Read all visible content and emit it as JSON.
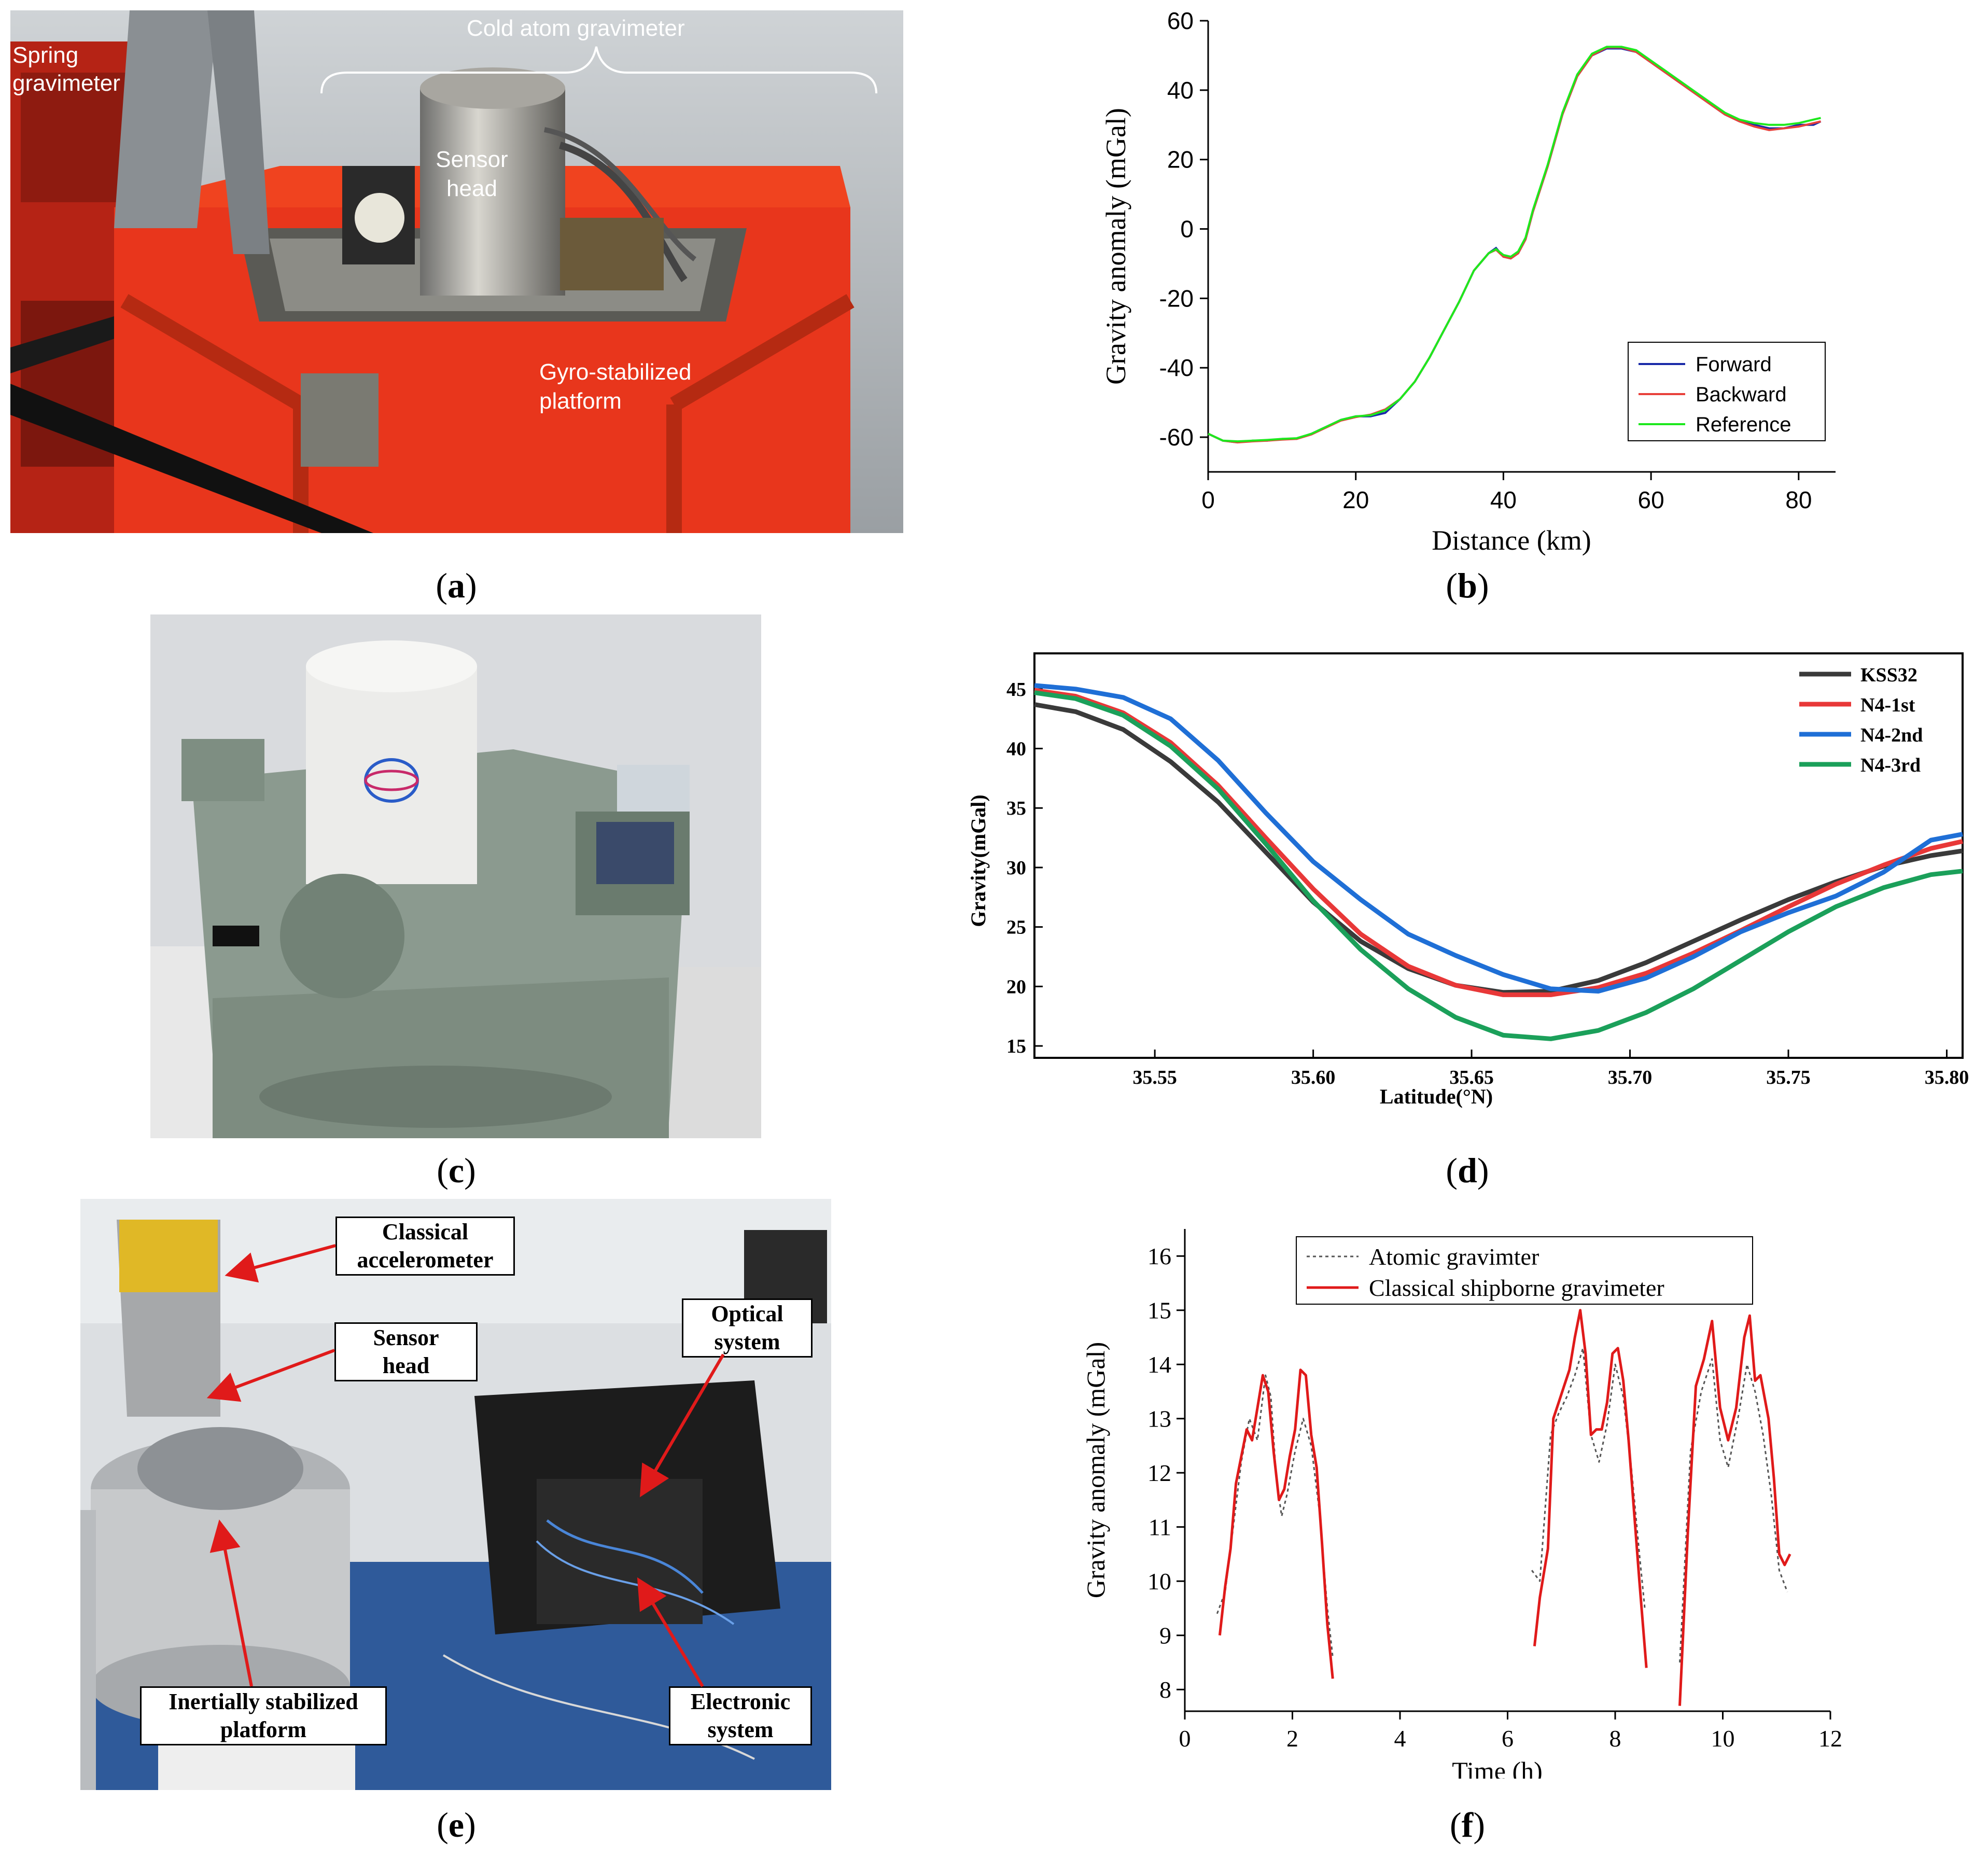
{
  "captions": {
    "a": "a",
    "b": "b",
    "c": "c",
    "d": "d",
    "e": "e",
    "f": "f"
  },
  "photo_a": {
    "labels": {
      "spring_gravimeter": [
        "Spring",
        "gravimeter"
      ],
      "cold_atom": "Cold atom gravimeter",
      "sensor_head": [
        "Sensor",
        "head"
      ],
      "gyro_platform": [
        "Gyro-stabilized",
        "platform"
      ]
    }
  },
  "photo_e": {
    "labels": {
      "classical_accelerometer": [
        "Classical",
        "accelerometer"
      ],
      "sensor_head": [
        "Sensor",
        "head"
      ],
      "optical_system": [
        "Optical",
        "system"
      ],
      "inertially_stabilized_platform": [
        "Inertially stabilized",
        "platform"
      ],
      "electronic_system": [
        "Electronic",
        "system"
      ]
    }
  },
  "chart_data": [
    {
      "id": "b",
      "type": "line",
      "xlabel": "Distance (km)",
      "ylabel": "Gravity anomaly (mGal)",
      "xlim": [
        0,
        85
      ],
      "ylim": [
        -70,
        60
      ],
      "xticks": [
        0,
        20,
        40,
        60,
        80
      ],
      "yticks": [
        -60,
        -40,
        -20,
        0,
        20,
        40,
        60
      ],
      "legend_position": "bottom-right",
      "x": [
        0,
        2,
        4,
        6,
        8,
        10,
        12,
        14,
        16,
        18,
        20,
        22,
        24,
        26,
        28,
        30,
        32,
        34,
        36,
        38,
        39,
        40,
        41,
        42,
        43,
        44,
        46,
        48,
        50,
        52,
        54,
        56,
        58,
        60,
        62,
        64,
        66,
        68,
        70,
        72,
        74,
        76,
        78,
        80,
        82,
        83
      ],
      "series": [
        {
          "name": "Forward",
          "color": "#1a2aa8",
          "values": [
            -59,
            -61,
            -61.5,
            -61,
            -61,
            -60.5,
            -60.5,
            -59,
            -57,
            -55,
            -54,
            -54,
            -53,
            -49,
            -44,
            -37,
            -29,
            -21,
            -12,
            -7,
            -5.5,
            -8,
            -8.5,
            -7,
            -3,
            5,
            18,
            33,
            44,
            50,
            52,
            52,
            51,
            48,
            45,
            42,
            39,
            36,
            33,
            31,
            30,
            29,
            29,
            30,
            30,
            31
          ]
        },
        {
          "name": "Backward",
          "color": "#e8403a",
          "values": [
            -59,
            -61,
            -61.5,
            -61.2,
            -61,
            -60.7,
            -60.5,
            -59.2,
            -57.2,
            -55.2,
            -54.2,
            -53.5,
            -52,
            -49,
            -44,
            -37,
            -29,
            -21,
            -12,
            -7,
            -6,
            -8,
            -8.5,
            -7,
            -3,
            5,
            18,
            33,
            44,
            50,
            52.3,
            52.3,
            51,
            48,
            45,
            42,
            39,
            36,
            33,
            31,
            29.5,
            28.5,
            29,
            29.5,
            30.5,
            31
          ]
        },
        {
          "name": "Reference",
          "color": "#1ee81e",
          "values": [
            -59,
            -61,
            -61.2,
            -61,
            -60.8,
            -60.5,
            -60.3,
            -59,
            -57,
            -55,
            -54,
            -53.7,
            -52.3,
            -49,
            -44,
            -37,
            -29,
            -21,
            -12,
            -7,
            -5.8,
            -7.5,
            -8,
            -6.5,
            -2.5,
            5.5,
            18.5,
            33.5,
            44.5,
            50.5,
            52.5,
            52.5,
            51.5,
            48.5,
            45.5,
            42.5,
            39.5,
            36.5,
            33.5,
            31.5,
            30.5,
            30,
            30,
            30.5,
            31.5,
            32
          ]
        }
      ]
    },
    {
      "id": "d",
      "type": "line",
      "xlabel": "Latitude(°N)",
      "ylabel": "Gravity(mGal)",
      "xlim": [
        35.512,
        35.805
      ],
      "ylim": [
        14,
        48
      ],
      "xticks": [
        35.55,
        35.6,
        35.65,
        35.7,
        35.75,
        35.8
      ],
      "xticklabels": [
        "35.55",
        "35.60",
        "35.65",
        "35.70",
        "35.75",
        "35.80"
      ],
      "yticks": [
        15,
        20,
        25,
        30,
        35,
        40,
        45
      ],
      "legend_position": "top-right",
      "x": [
        35.512,
        35.525,
        35.54,
        35.555,
        35.57,
        35.585,
        35.6,
        35.615,
        35.63,
        35.645,
        35.66,
        35.675,
        35.69,
        35.705,
        35.72,
        35.735,
        35.75,
        35.765,
        35.78,
        35.795,
        35.805
      ],
      "series": [
        {
          "name": "KSS32",
          "color": "#3a3a3a",
          "values": [
            43.7,
            43.1,
            41.6,
            38.9,
            35.5,
            31.3,
            27.1,
            23.8,
            21.5,
            20.1,
            19.5,
            19.6,
            20.5,
            22.0,
            23.8,
            25.6,
            27.3,
            28.8,
            30.1,
            31.0,
            31.4
          ]
        },
        {
          "name": "N4-1st",
          "color": "#e83838",
          "values": [
            44.9,
            44.4,
            43.0,
            40.5,
            36.9,
            32.5,
            28.2,
            24.4,
            21.7,
            20.1,
            19.3,
            19.3,
            19.9,
            21.1,
            22.8,
            24.7,
            26.7,
            28.6,
            30.2,
            31.6,
            32.2
          ]
        },
        {
          "name": "N4-2nd",
          "color": "#1f6fd6",
          "values": [
            45.3,
            45.0,
            44.3,
            42.5,
            39.0,
            34.6,
            30.5,
            27.3,
            24.4,
            22.6,
            21.0,
            19.8,
            19.6,
            20.7,
            22.5,
            24.6,
            26.2,
            27.6,
            29.6,
            32.3,
            32.8
          ]
        },
        {
          "name": "N4-3rd",
          "color": "#1ba05a",
          "values": [
            44.7,
            44.2,
            42.8,
            40.2,
            36.6,
            32.0,
            27.2,
            23.1,
            19.8,
            17.4,
            15.9,
            15.6,
            16.3,
            17.8,
            19.8,
            22.2,
            24.6,
            26.7,
            28.3,
            29.4,
            29.7
          ]
        }
      ]
    },
    {
      "id": "f",
      "type": "line",
      "xlabel": "Time (h)",
      "ylabel": "Gravity anomaly (mGal)",
      "xlim": [
        0,
        12
      ],
      "ylim": [
        7.6,
        16.5
      ],
      "xticks": [
        0,
        2,
        4,
        6,
        8,
        10,
        12
      ],
      "yticks": [
        8,
        9,
        10,
        11,
        12,
        13,
        14,
        15,
        16
      ],
      "legend_position": "top",
      "series": [
        {
          "name": "Atomic gravimter",
          "color": "#555555",
          "style": "dotted",
          "segments": [
            {
              "x": [
                0.6,
                0.75,
                0.9,
                1.05,
                1.2,
                1.35,
                1.5,
                1.6,
                1.7,
                1.8,
                1.9,
                2.05,
                2.2,
                2.35,
                2.5,
                2.65,
                2.75
              ],
              "y": [
                9.4,
                9.8,
                11.0,
                12.2,
                13.0,
                12.6,
                13.8,
                13.4,
                11.9,
                11.2,
                11.6,
                12.4,
                13.0,
                12.5,
                11.3,
                9.5,
                8.6
              ]
            },
            {
              "x": [
                6.45,
                6.6,
                6.8,
                6.95,
                7.1,
                7.25,
                7.4,
                7.55,
                7.7,
                7.85,
                8.0,
                8.15,
                8.3,
                8.45,
                8.55
              ],
              "y": [
                10.2,
                10.0,
                12.7,
                13.1,
                13.4,
                13.8,
                14.3,
                12.7,
                12.2,
                12.9,
                14.0,
                13.4,
                12.1,
                10.5,
                9.5
              ]
            },
            {
              "x": [
                9.2,
                9.4,
                9.6,
                9.8,
                9.95,
                10.1,
                10.3,
                10.45,
                10.6,
                10.75,
                10.9,
                11.05,
                11.2
              ],
              "y": [
                8.5,
                12.4,
                13.5,
                14.1,
                12.6,
                12.1,
                13.1,
                14.0,
                13.5,
                12.7,
                11.6,
                10.2,
                9.8
              ]
            }
          ]
        },
        {
          "name": "Classical shipborne gravimeter",
          "color": "#e01a1a",
          "style": "solid",
          "segments": [
            {
              "x": [
                0.65,
                0.75,
                0.85,
                0.95,
                1.05,
                1.15,
                1.25,
                1.35,
                1.45,
                1.55,
                1.65,
                1.75,
                1.85,
                1.95,
                2.05,
                2.15,
                2.25,
                2.35,
                2.45,
                2.55,
                2.65,
                2.75
              ],
              "y": [
                9.0,
                9.9,
                10.6,
                11.8,
                12.3,
                12.8,
                12.6,
                13.2,
                13.8,
                13.5,
                12.4,
                11.5,
                11.7,
                12.3,
                12.8,
                13.9,
                13.8,
                12.7,
                12.1,
                10.7,
                9.2,
                8.2
              ]
            },
            {
              "x": [
                6.5,
                6.6,
                6.75,
                6.85,
                6.95,
                7.05,
                7.15,
                7.25,
                7.35,
                7.45,
                7.55,
                7.65,
                7.75,
                7.85,
                7.95,
                8.05,
                8.15,
                8.25,
                8.35,
                8.45,
                8.58
              ],
              "y": [
                8.8,
                9.7,
                10.6,
                13.0,
                13.3,
                13.6,
                13.9,
                14.5,
                15.0,
                14.2,
                12.7,
                12.8,
                12.8,
                13.3,
                14.2,
                14.3,
                13.7,
                12.6,
                11.3,
                10.0,
                8.4
              ]
            },
            {
              "x": [
                9.2,
                9.35,
                9.5,
                9.65,
                9.8,
                9.95,
                10.1,
                10.25,
                10.4,
                10.5,
                10.6,
                10.7,
                10.85,
                10.95,
                11.05,
                11.15,
                11.25
              ],
              "y": [
                7.7,
                10.9,
                13.6,
                14.1,
                14.8,
                13.2,
                12.6,
                13.2,
                14.5,
                14.9,
                13.7,
                13.8,
                13.0,
                11.9,
                10.5,
                10.3,
                10.5
              ]
            }
          ]
        }
      ]
    }
  ]
}
